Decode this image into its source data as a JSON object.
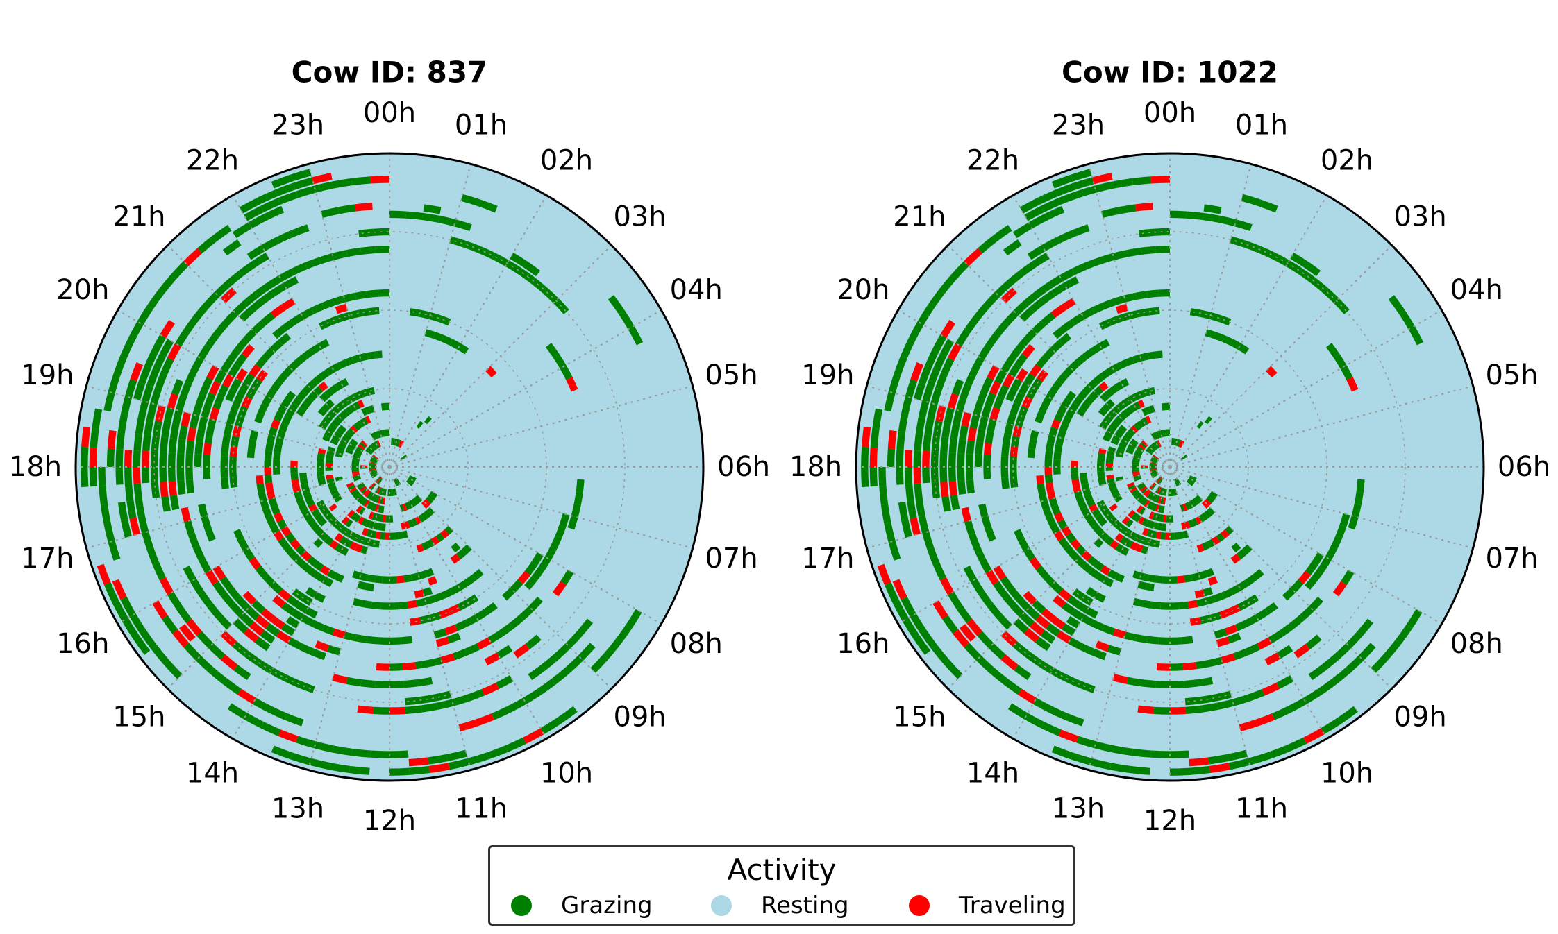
{
  "chart_data": [
    {
      "type": "polar-activity-timeline",
      "title": "Cow ID: 837",
      "hour_labels": [
        "00h",
        "01h",
        "02h",
        "03h",
        "04h",
        "05h",
        "06h",
        "07h",
        "08h",
        "09h",
        "10h",
        "11h",
        "12h",
        "13h",
        "14h",
        "15h",
        "16h",
        "17h",
        "18h",
        "19h",
        "20h",
        "21h",
        "22h",
        "23h"
      ],
      "categories": [
        "Grazing",
        "Resting",
        "Traveling"
      ],
      "grazing_share_by_hour": [
        0.18,
        0.15,
        0.14,
        0.1,
        0.05,
        0.03,
        0.02,
        0.05,
        0.3,
        0.55,
        0.6,
        0.55,
        0.55,
        0.55,
        0.6,
        0.55,
        0.5,
        0.7,
        0.8,
        0.7,
        0.55,
        0.45,
        0.3,
        0.2
      ],
      "traveling_share_by_hour": [
        0.01,
        0.01,
        0.01,
        0.01,
        0.02,
        0.02,
        0.0,
        0.01,
        0.05,
        0.08,
        0.08,
        0.08,
        0.08,
        0.1,
        0.12,
        0.1,
        0.08,
        0.1,
        0.05,
        0.05,
        0.05,
        0.04,
        0.02,
        0.02
      ],
      "grid": true
    },
    {
      "type": "polar-activity-timeline",
      "title": "Cow ID: 1022",
      "hour_labels": [
        "00h",
        "01h",
        "02h",
        "03h",
        "04h",
        "05h",
        "06h",
        "07h",
        "08h",
        "09h",
        "10h",
        "11h",
        "12h",
        "13h",
        "14h",
        "15h",
        "16h",
        "17h",
        "18h",
        "19h",
        "20h",
        "21h",
        "22h",
        "23h"
      ],
      "categories": [
        "Grazing",
        "Resting",
        "Traveling"
      ],
      "grazing_share_by_hour": [
        0.18,
        0.15,
        0.14,
        0.1,
        0.05,
        0.03,
        0.02,
        0.05,
        0.3,
        0.55,
        0.6,
        0.55,
        0.55,
        0.55,
        0.6,
        0.55,
        0.5,
        0.7,
        0.8,
        0.7,
        0.55,
        0.45,
        0.3,
        0.2
      ],
      "traveling_share_by_hour": [
        0.01,
        0.01,
        0.01,
        0.01,
        0.02,
        0.02,
        0.0,
        0.01,
        0.05,
        0.08,
        0.08,
        0.08,
        0.08,
        0.1,
        0.12,
        0.1,
        0.08,
        0.1,
        0.05,
        0.05,
        0.05,
        0.04,
        0.02,
        0.02
      ],
      "grid": true
    }
  ],
  "legend": {
    "title": "Activity",
    "placement": "bottom-center",
    "items": [
      {
        "label": "Grazing",
        "color": "#008000"
      },
      {
        "label": "Resting",
        "color": "#add8e6"
      },
      {
        "label": "Traveling",
        "color": "#ff0000"
      }
    ]
  }
}
